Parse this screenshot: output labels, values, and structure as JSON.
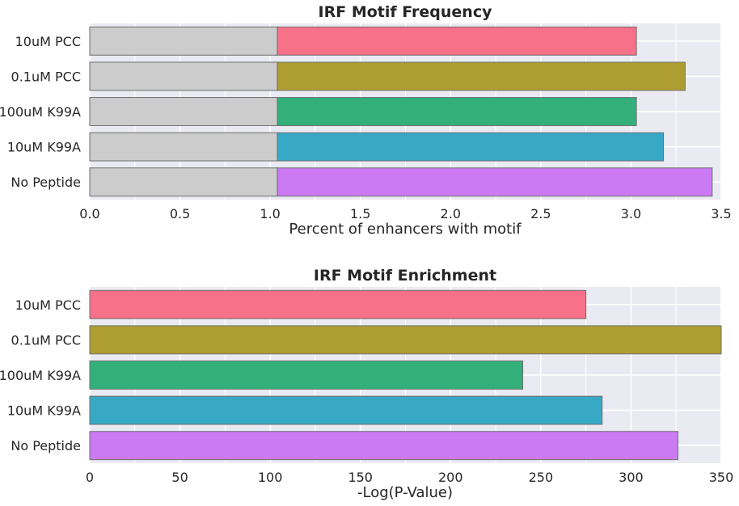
{
  "chart_data": [
    {
      "type": "bar",
      "orientation": "horizontal",
      "stacked": true,
      "title": "IRF Motif Frequency",
      "xlabel": "Percent of enhancers with motif",
      "ylabel": "",
      "categories": [
        "10uM PCC",
        "0.1uM PCC",
        "100uM K99A",
        "10uM K99A",
        "No Peptide"
      ],
      "background_values": [
        1.04,
        1.04,
        1.04,
        1.04,
        1.04
      ],
      "values": [
        3.03,
        3.3,
        3.03,
        3.18,
        3.45
      ],
      "background_color": "#cccccc",
      "colors": [
        "#f77189",
        "#ae9d31",
        "#33b07a",
        "#38a9c5",
        "#cc7af4"
      ],
      "xlim": [
        0,
        3.5
      ],
      "xticks": [
        "0.0",
        "0.5",
        "1.0",
        "1.5",
        "2.0",
        "2.5",
        "3.0",
        "3.5"
      ],
      "grid": true
    },
    {
      "type": "bar",
      "orientation": "horizontal",
      "title": "IRF Motif Enrichment",
      "xlabel": "-Log(P-Value)",
      "ylabel": "",
      "categories": [
        "10uM PCC",
        "0.1uM PCC",
        "100uM K99A",
        "10uM K99A",
        "No Peptide"
      ],
      "values": [
        275,
        350,
        240,
        284,
        326
      ],
      "colors": [
        "#f77189",
        "#ae9d31",
        "#33b07a",
        "#38a9c5",
        "#cc7af4"
      ],
      "xlim": [
        0,
        350
      ],
      "xticks": [
        "0",
        "50",
        "100",
        "150",
        "200",
        "250",
        "300",
        "350"
      ],
      "grid": true
    }
  ]
}
